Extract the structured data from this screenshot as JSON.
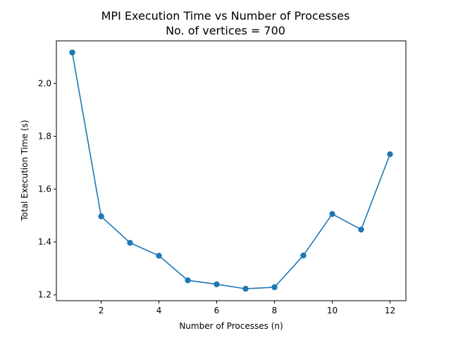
{
  "chart_data": {
    "type": "line",
    "title": "MPI Execution Time vs Number of Processes",
    "subtitle": "No. of vertices = 700",
    "xlabel": "Number of Processes (n)",
    "ylabel": "Total Execution Time (s)",
    "x": [
      1,
      2,
      3,
      4,
      5,
      6,
      7,
      8,
      9,
      10,
      11,
      12
    ],
    "series": [
      {
        "values": [
          2.117,
          1.497,
          1.397,
          1.348,
          1.255,
          1.24,
          1.223,
          1.229,
          1.349,
          1.506,
          1.447,
          1.732
        ],
        "color": "#1f77b4",
        "marker": "circle"
      }
    ],
    "xlim": [
      0.45,
      12.55
    ],
    "ylim": [
      1.178,
      2.161
    ],
    "xticks": [
      2,
      4,
      6,
      8,
      10,
      12
    ],
    "yticks": [
      1.2,
      1.4,
      1.6,
      1.8,
      2.0
    ],
    "xtick_labels": [
      "2",
      "4",
      "6",
      "8",
      "10",
      "12"
    ],
    "ytick_labels": [
      "1.2",
      "1.4",
      "1.6",
      "1.8",
      "2.0"
    ],
    "grid": false,
    "legend": "none"
  }
}
